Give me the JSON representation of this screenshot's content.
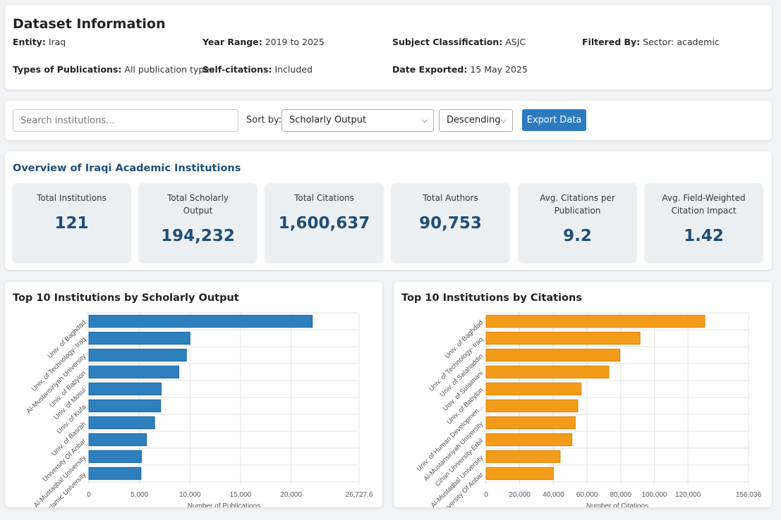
{
  "dataset": {
    "title": "Dataset Information",
    "entity": {
      "label": "Entity:",
      "value": "Iraq"
    },
    "year_range": {
      "label": "Year Range:",
      "value": "2019 to 2025"
    },
    "subject": {
      "label": "Subject Classification:",
      "value": "ASJC"
    },
    "filtered": {
      "label": "Filtered By:",
      "value": "Sector: academic"
    },
    "pub_types": {
      "label": "Types of Publications:",
      "value": "All publication types"
    },
    "self_cit": {
      "label": "Self-citations:",
      "value": "Included"
    },
    "exported": {
      "label": "Date Exported:",
      "value": "15 May 2025"
    }
  },
  "controls": {
    "search_placeholder": "Search institutions...",
    "sort_label": "Sort by:",
    "sort_field": "Scholarly Output",
    "sort_order": "Descending",
    "export_label": "Export Data"
  },
  "overview": {
    "title": "Overview of Iraqi Academic Institutions",
    "stats": [
      {
        "label": "Total Institutions",
        "value": "121"
      },
      {
        "label": "Total Scholarly Output",
        "value": "194,232"
      },
      {
        "label": "Total Citations",
        "value": "1,600,637"
      },
      {
        "label": "Total Authors",
        "value": "90,753"
      },
      {
        "label": "Avg. Citations per Publication",
        "value": "9.2"
      },
      {
        "label": "Avg. Field-Weighted Citation Impact",
        "value": "1.42"
      }
    ]
  },
  "colors": {
    "output_bar": "#2e7fbd",
    "citation_bar": "#f39c1a",
    "accent": "#1f4e79"
  },
  "chart_data": [
    {
      "type": "bar",
      "orientation": "horizontal",
      "title": "Top 10 Institutions by Scholarly Output",
      "categories": [
        "Univ. of Baghdad",
        "Univ. of Technology- Iraq",
        "Al-Mustansiriyah University",
        "Univ. of Babylon",
        "Univ. of Mosul",
        "Univ. of Kufa",
        "Univ. of Basrah",
        "University Of Anbar",
        "Al-Mustaqbal University",
        "The Islamic University"
      ],
      "values": [
        22100,
        10000,
        9650,
        8900,
        7150,
        7100,
        6500,
        5700,
        5200,
        5150
      ],
      "xlabel": "Number of Publications",
      "xlim": [
        0,
        26727.6
      ],
      "ticks": [
        0,
        5000,
        10000,
        15000,
        20000,
        26727.6
      ],
      "tick_labels": [
        "0",
        "5,000",
        "10,000",
        "15,000",
        "20,000",
        "26,727.6"
      ]
    },
    {
      "type": "bar",
      "orientation": "horizontal",
      "title": "Top 10 Institutions by Citations",
      "categories": [
        "Univ. of Baghdad",
        "Univ. of Technology- Iraq",
        "Univ. of Salahaddin",
        "Univ. of Sulaimani",
        "Univ. of Babylon",
        "Univ. of Human Developmen...",
        "Al-Mustansiriyah University",
        "Cihan University-Erbil",
        "Al-Mustaqbal University",
        "University Of Anbar"
      ],
      "values": [
        130000,
        91500,
        79500,
        73000,
        56500,
        54500,
        53000,
        51000,
        44000,
        40000
      ],
      "xlabel": "Number of Citations",
      "xlim": [
        0,
        156036
      ],
      "ticks": [
        0,
        20000,
        40000,
        60000,
        80000,
        100000,
        120000,
        156036
      ],
      "tick_labels": [
        "0",
        "20,000",
        "40,000",
        "60,000",
        "80,000",
        "100,000",
        "120,000",
        "156,036"
      ]
    }
  ]
}
